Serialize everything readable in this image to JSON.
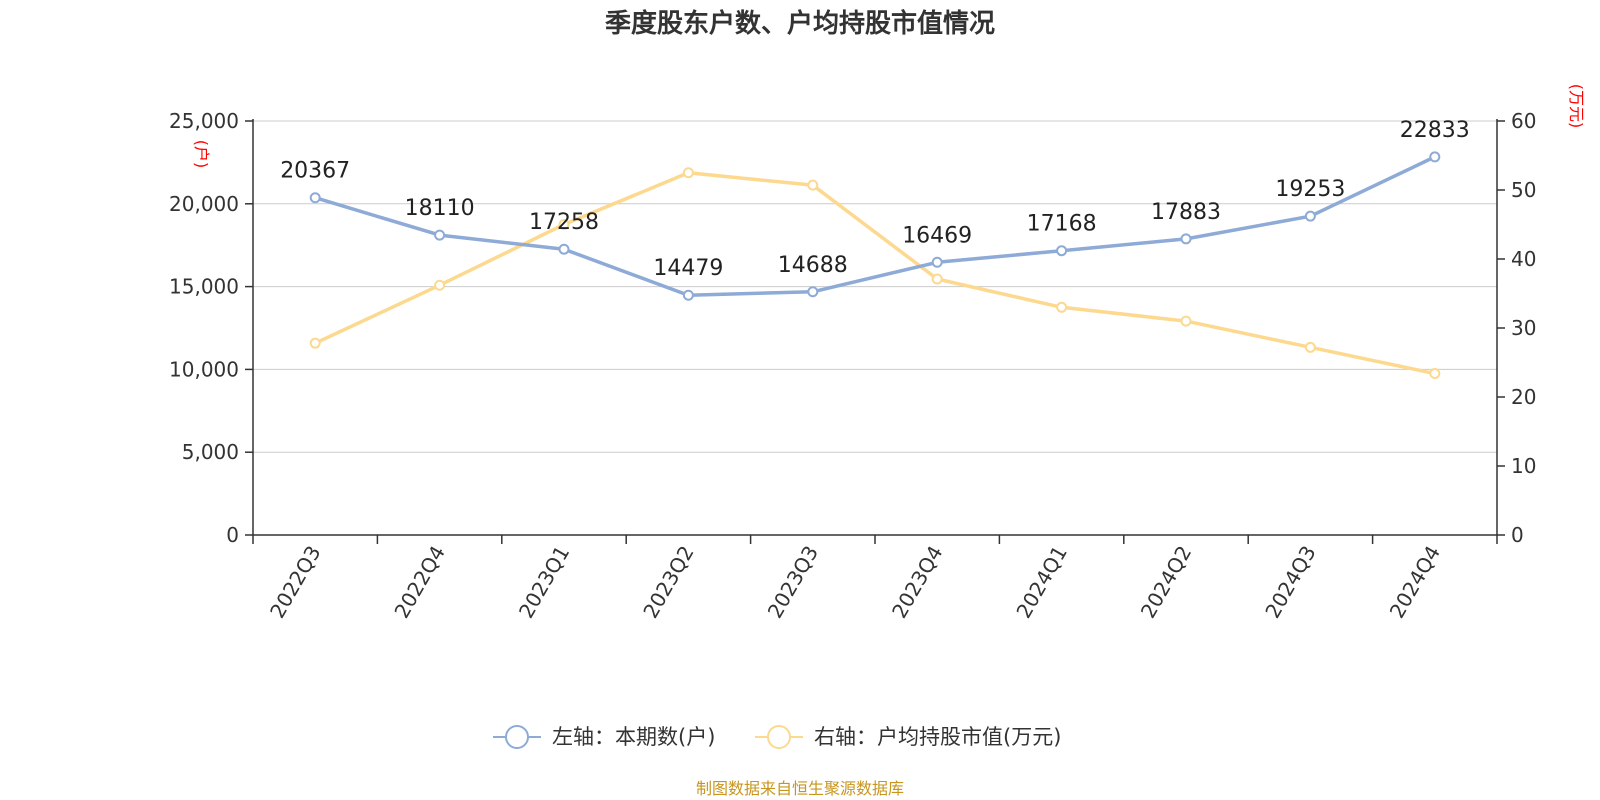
{
  "chart_data": {
    "type": "line",
    "title": "季度股东户数、户均持股市值情况",
    "categories": [
      "2022Q3",
      "2022Q4",
      "2023Q1",
      "2023Q2",
      "2023Q3",
      "2023Q4",
      "2024Q1",
      "2024Q2",
      "2024Q3",
      "2024Q4"
    ],
    "y_left": {
      "unit": "(户)",
      "range": [
        0,
        25000
      ],
      "ticks": [
        "0",
        "5,000",
        "10,000",
        "15,000",
        "20,000",
        "25,000"
      ],
      "tick_values": [
        0,
        5000,
        10000,
        15000,
        20000,
        25000
      ]
    },
    "y_right": {
      "unit": "(万元)",
      "range": [
        0,
        60
      ],
      "ticks": [
        "0",
        "10",
        "20",
        "30",
        "40",
        "50",
        "60"
      ],
      "tick_values": [
        0,
        10,
        20,
        30,
        40,
        50,
        60
      ]
    },
    "grid": true,
    "legend_position": "bottom",
    "series": [
      {
        "name": "左轴：本期数(户)",
        "axis": "left",
        "color": "#8eaad6",
        "values": [
          20367,
          18110,
          17258,
          14479,
          14688,
          16469,
          17168,
          17883,
          19253,
          22833
        ],
        "labels": [
          "20367",
          "18110",
          "17258",
          "14479",
          "14688",
          "16469",
          "17168",
          "17883",
          "19253",
          "22833"
        ]
      },
      {
        "name": "右轴：户均持股市值(万元)",
        "axis": "right",
        "color": "#fcd98e",
        "values": [
          27.8,
          36.2,
          45.0,
          52.5,
          50.7,
          37.1,
          33.0,
          31.0,
          27.2,
          23.4
        ]
      }
    ],
    "source": "制图数据来自恒生聚源数据库"
  }
}
